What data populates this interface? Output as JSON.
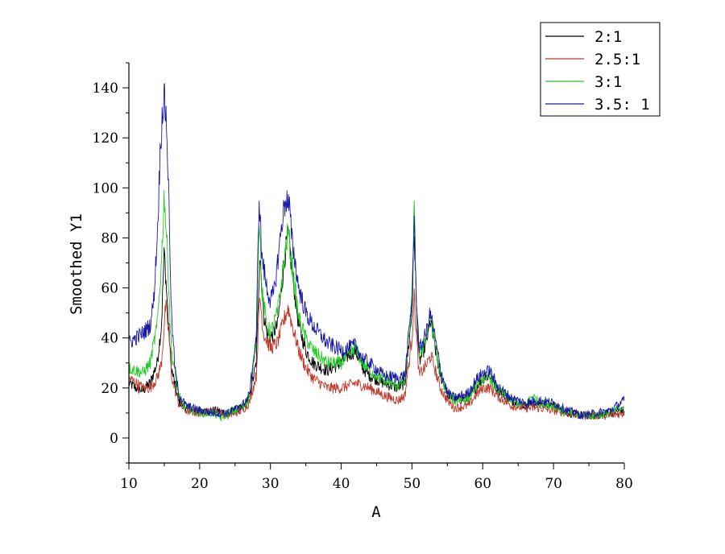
{
  "chart_data": {
    "type": "line",
    "title": "",
    "xlabel": "A",
    "ylabel": "Smoothed Y1",
    "xlim": [
      10,
      80
    ],
    "ylim": [
      -10,
      150
    ],
    "x_ticks": [
      10,
      20,
      30,
      40,
      50,
      60,
      70,
      80
    ],
    "y_ticks": [
      0,
      20,
      40,
      60,
      80,
      100,
      120,
      140
    ],
    "grid": false,
    "legend_position": "top-right",
    "series": [
      {
        "name": "2:1",
        "color": "#000000",
        "points": [
          [
            10,
            22
          ],
          [
            11,
            20
          ],
          [
            12,
            19
          ],
          [
            13,
            22
          ],
          [
            14,
            30
          ],
          [
            14.6,
            45
          ],
          [
            15,
            75
          ],
          [
            15.5,
            50
          ],
          [
            16,
            28
          ],
          [
            17,
            15
          ],
          [
            18,
            12
          ],
          [
            20,
            10
          ],
          [
            22,
            11
          ],
          [
            24,
            10
          ],
          [
            26,
            12
          ],
          [
            27,
            16
          ],
          [
            28,
            30
          ],
          [
            28.5,
            75
          ],
          [
            29,
            50
          ],
          [
            29.5,
            42
          ],
          [
            30,
            40
          ],
          [
            31,
            45
          ],
          [
            32,
            72
          ],
          [
            32.5,
            82
          ],
          [
            33,
            68
          ],
          [
            34,
            45
          ],
          [
            35,
            35
          ],
          [
            36,
            30
          ],
          [
            38,
            27
          ],
          [
            40,
            30
          ],
          [
            41,
            33
          ],
          [
            42,
            35
          ],
          [
            43,
            28
          ],
          [
            44,
            25
          ],
          [
            46,
            22
          ],
          [
            48,
            20
          ],
          [
            49,
            22
          ],
          [
            50,
            50
          ],
          [
            50.3,
            84
          ],
          [
            50.6,
            55
          ],
          [
            51,
            30
          ],
          [
            52,
            38
          ],
          [
            52.6,
            47
          ],
          [
            53,
            40
          ],
          [
            54,
            25
          ],
          [
            55,
            18
          ],
          [
            56,
            15
          ],
          [
            58,
            16
          ],
          [
            59,
            20
          ],
          [
            60,
            24
          ],
          [
            61,
            25
          ],
          [
            62,
            20
          ],
          [
            64,
            15
          ],
          [
            66,
            13
          ],
          [
            68,
            14
          ],
          [
            70,
            13
          ],
          [
            72,
            10
          ],
          [
            74,
            9
          ],
          [
            76,
            9
          ],
          [
            78,
            10
          ],
          [
            80,
            11
          ]
        ]
      },
      {
        "name": "2.5:1",
        "color": "#c0392b",
        "points": [
          [
            10,
            24
          ],
          [
            11,
            22
          ],
          [
            12,
            20
          ],
          [
            13,
            20
          ],
          [
            14,
            24
          ],
          [
            14.6,
            30
          ],
          [
            15.2,
            53
          ],
          [
            15.7,
            40
          ],
          [
            16,
            25
          ],
          [
            17,
            14
          ],
          [
            18,
            11
          ],
          [
            20,
            10
          ],
          [
            22,
            11
          ],
          [
            24,
            9
          ],
          [
            26,
            11
          ],
          [
            27,
            14
          ],
          [
            28,
            25
          ],
          [
            28.5,
            57
          ],
          [
            29,
            42
          ],
          [
            30,
            36
          ],
          [
            31,
            38
          ],
          [
            32,
            48
          ],
          [
            32.5,
            52
          ],
          [
            33,
            46
          ],
          [
            34,
            35
          ],
          [
            35,
            28
          ],
          [
            36,
            24
          ],
          [
            38,
            20
          ],
          [
            40,
            20
          ],
          [
            41,
            21
          ],
          [
            42,
            22
          ],
          [
            44,
            20
          ],
          [
            46,
            17
          ],
          [
            48,
            15
          ],
          [
            49,
            17
          ],
          [
            50,
            40
          ],
          [
            50.3,
            57
          ],
          [
            50.6,
            42
          ],
          [
            51,
            25
          ],
          [
            52,
            29
          ],
          [
            52.7,
            33
          ],
          [
            53,
            30
          ],
          [
            54,
            20
          ],
          [
            55,
            15
          ],
          [
            56,
            12
          ],
          [
            58,
            13
          ],
          [
            59,
            17
          ],
          [
            60,
            20
          ],
          [
            61,
            20
          ],
          [
            62,
            17
          ],
          [
            64,
            13
          ],
          [
            66,
            12
          ],
          [
            68,
            12
          ],
          [
            70,
            11
          ],
          [
            72,
            10
          ],
          [
            74,
            9
          ],
          [
            76,
            9
          ],
          [
            78,
            9
          ],
          [
            80,
            10
          ]
        ]
      },
      {
        "name": "3:1",
        "color": "#22cc22",
        "points": [
          [
            10,
            28
          ],
          [
            11,
            27
          ],
          [
            12,
            26
          ],
          [
            13,
            30
          ],
          [
            14,
            45
          ],
          [
            14.6,
            70
          ],
          [
            15,
            98
          ],
          [
            15.5,
            70
          ],
          [
            16,
            35
          ],
          [
            17,
            17
          ],
          [
            18,
            12
          ],
          [
            20,
            10
          ],
          [
            22,
            10
          ],
          [
            23,
            8
          ],
          [
            24,
            10
          ],
          [
            26,
            12
          ],
          [
            27,
            16
          ],
          [
            28,
            40
          ],
          [
            28.4,
            90
          ],
          [
            28.8,
            58
          ],
          [
            29.5,
            45
          ],
          [
            30,
            42
          ],
          [
            31,
            50
          ],
          [
            32,
            72
          ],
          [
            32.5,
            83
          ],
          [
            33,
            70
          ],
          [
            34,
            48
          ],
          [
            35,
            40
          ],
          [
            36,
            35
          ],
          [
            38,
            30
          ],
          [
            40,
            30
          ],
          [
            41,
            33
          ],
          [
            42,
            36
          ],
          [
            43,
            30
          ],
          [
            44,
            27
          ],
          [
            46,
            23
          ],
          [
            48,
            21
          ],
          [
            49,
            23
          ],
          [
            50,
            55
          ],
          [
            50.3,
            92
          ],
          [
            50.6,
            58
          ],
          [
            51,
            33
          ],
          [
            52,
            40
          ],
          [
            52.6,
            48
          ],
          [
            53,
            42
          ],
          [
            54,
            25
          ],
          [
            55,
            18
          ],
          [
            56,
            15
          ],
          [
            58,
            16
          ],
          [
            59,
            21
          ],
          [
            60,
            24
          ],
          [
            61,
            24
          ],
          [
            62,
            20
          ],
          [
            64,
            15
          ],
          [
            66,
            13
          ],
          [
            67,
            17
          ],
          [
            68,
            14
          ],
          [
            70,
            13
          ],
          [
            72,
            10
          ],
          [
            74,
            9
          ],
          [
            76,
            9
          ],
          [
            78,
            10
          ],
          [
            80,
            13
          ]
        ]
      },
      {
        "name": "3.5: 1",
        "color": "#1a1aa6",
        "points": [
          [
            10,
            38
          ],
          [
            11,
            40
          ],
          [
            12,
            42
          ],
          [
            13,
            45
          ],
          [
            13.5,
            55
          ],
          [
            14,
            80
          ],
          [
            14.5,
            120
          ],
          [
            14.9,
            137
          ],
          [
            15.3,
            128
          ],
          [
            15.7,
            90
          ],
          [
            16,
            50
          ],
          [
            16.5,
            28
          ],
          [
            17,
            18
          ],
          [
            18,
            13
          ],
          [
            20,
            11
          ],
          [
            22,
            10
          ],
          [
            24,
            10
          ],
          [
            26,
            13
          ],
          [
            27,
            17
          ],
          [
            28,
            40
          ],
          [
            28.4,
            97
          ],
          [
            28.8,
            72
          ],
          [
            29.5,
            60
          ],
          [
            30,
            55
          ],
          [
            30.5,
            58
          ],
          [
            31,
            70
          ],
          [
            31.7,
            88
          ],
          [
            32.2,
            96
          ],
          [
            32.7,
            92
          ],
          [
            33,
            80
          ],
          [
            34,
            60
          ],
          [
            35,
            50
          ],
          [
            36,
            45
          ],
          [
            38,
            38
          ],
          [
            40,
            35
          ],
          [
            41,
            36
          ],
          [
            42,
            37
          ],
          [
            43,
            32
          ],
          [
            44,
            30
          ],
          [
            46,
            25
          ],
          [
            48,
            24
          ],
          [
            49,
            25
          ],
          [
            50,
            55
          ],
          [
            50.3,
            86
          ],
          [
            50.6,
            58
          ],
          [
            51,
            35
          ],
          [
            52,
            42
          ],
          [
            52.6,
            50
          ],
          [
            53,
            44
          ],
          [
            54,
            28
          ],
          [
            55,
            18
          ],
          [
            56,
            16
          ],
          [
            58,
            18
          ],
          [
            59,
            23
          ],
          [
            60,
            26
          ],
          [
            61,
            27
          ],
          [
            62,
            21
          ],
          [
            64,
            16
          ],
          [
            66,
            14
          ],
          [
            68,
            15
          ],
          [
            70,
            14
          ],
          [
            72,
            11
          ],
          [
            74,
            9
          ],
          [
            76,
            10
          ],
          [
            78,
            11
          ],
          [
            80,
            15
          ]
        ]
      }
    ]
  }
}
